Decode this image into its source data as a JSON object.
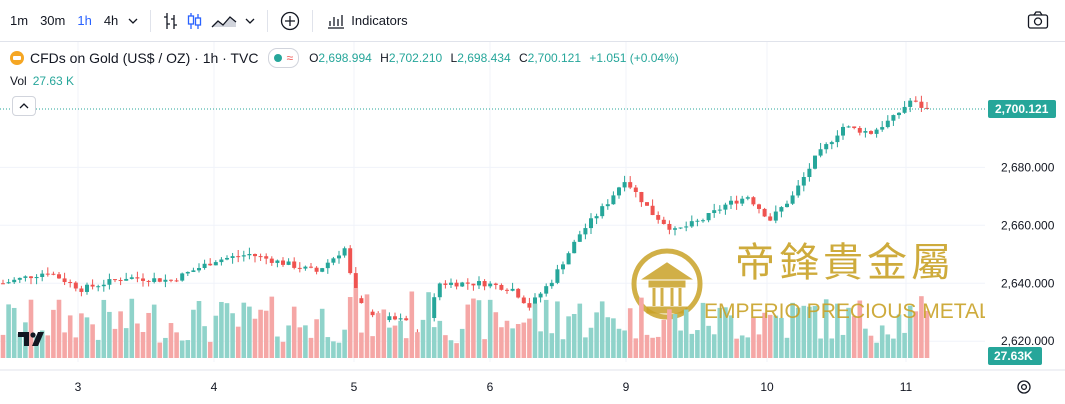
{
  "toolbar": {
    "timeframes": [
      {
        "label": "1m",
        "active": false
      },
      {
        "label": "30m",
        "active": false
      },
      {
        "label": "1h",
        "active": true
      },
      {
        "label": "4h",
        "active": false
      }
    ],
    "indicators_label": "Indicators"
  },
  "legend": {
    "symbol": "CFDs on Gold (US$ / OZ) · 1h · TVC",
    "open_label": "O",
    "open": "2,698.994",
    "high_label": "H",
    "high": "2,702.210",
    "low_label": "L",
    "low": "2,698.434",
    "close_label": "C",
    "close": "2,700.121",
    "change": "+1.051 (+0.04%)",
    "vol_label": "Vol",
    "vol_value": "27.63 K"
  },
  "watermark": {
    "chinese": "帝鋒貴金屬",
    "english": "EMPERIO PRECIOUS METALS"
  },
  "colors": {
    "up": "#26a69a",
    "down": "#ef5350",
    "up_vol": "#8fd3ca",
    "down_vol": "#f5a7a6",
    "last_price_tag": "#26a69a",
    "watermark_gold": "#c9a227"
  },
  "chart_data": {
    "type": "candlestick",
    "price_axis": {
      "ticks": [
        "2,620.000",
        "2,640.000",
        "2,660.000",
        "2,680.000"
      ],
      "tick_values": [
        2620,
        2640,
        2660,
        2680
      ],
      "range": [
        2608,
        2706
      ]
    },
    "time_axis": {
      "labels": [
        "3",
        "4",
        "5",
        "6",
        "9",
        "10",
        "11"
      ]
    },
    "last_price": 2700.121,
    "last_price_label": "2,700.121",
    "last_volume_label": "27.63K",
    "anchors": [
      [
        0,
        2640
      ],
      [
        8,
        2644
      ],
      [
        14,
        2638
      ],
      [
        22,
        2642
      ],
      [
        30,
        2641
      ],
      [
        38,
        2648
      ],
      [
        44,
        2650
      ],
      [
        50,
        2647
      ],
      [
        56,
        2644
      ],
      [
        61,
        2652
      ],
      [
        63,
        2634
      ],
      [
        67,
        2628
      ],
      [
        72,
        2627
      ],
      [
        74,
        2618
      ],
      [
        78,
        2640
      ],
      [
        86,
        2640
      ],
      [
        91,
        2638
      ],
      [
        94,
        2632
      ],
      [
        98,
        2641
      ],
      [
        103,
        2657
      ],
      [
        108,
        2668
      ],
      [
        111,
        2676
      ],
      [
        116,
        2664
      ],
      [
        120,
        2658
      ],
      [
        125,
        2662
      ],
      [
        129,
        2667
      ],
      [
        133,
        2670
      ],
      [
        137,
        2662
      ],
      [
        141,
        2670
      ],
      [
        145,
        2683
      ],
      [
        150,
        2694
      ],
      [
        155,
        2692
      ],
      [
        159,
        2697
      ],
      [
        162,
        2703
      ],
      [
        165,
        2700
      ]
    ],
    "volume_range": [
      0,
      60
    ]
  }
}
